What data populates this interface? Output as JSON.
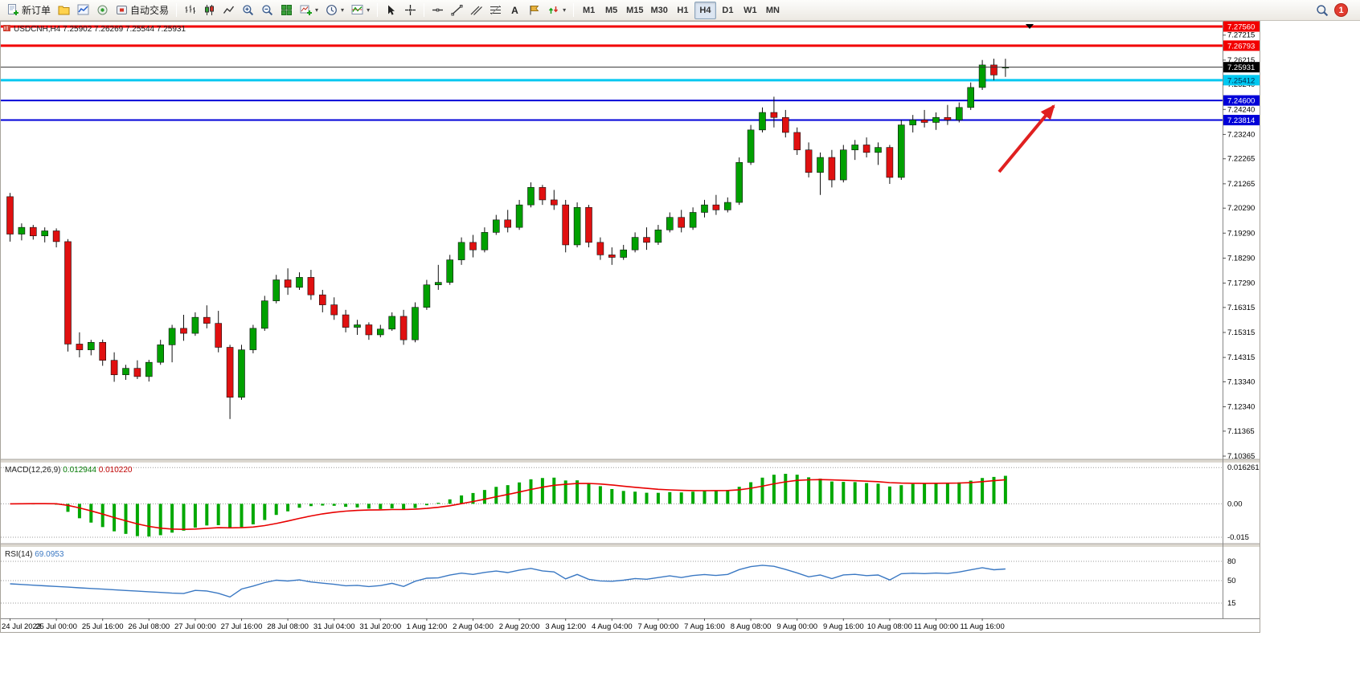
{
  "toolbar": {
    "new_order": "新订单",
    "autotrading": "自动交易",
    "timeframes": [
      "M1",
      "M5",
      "M15",
      "M30",
      "H1",
      "H4",
      "D1",
      "W1",
      "MN"
    ],
    "active_timeframe": "H4",
    "notification_count": "1"
  },
  "chart_data": {
    "type": "candlestick",
    "symbol": "USDCNH",
    "timeframe": "H4",
    "ohlc_label": "7.25902 7.26269 7.25544 7.25931",
    "last_bar": {
      "open": 7.25902,
      "high": 7.26269,
      "low": 7.25544,
      "close": 7.25931
    },
    "bid": 7.25931,
    "price_range": [
      7.10365,
      7.2756
    ],
    "price_axis_ticks": [
      7.27215,
      7.26215,
      7.2524,
      7.2424,
      7.2324,
      7.22265,
      7.21265,
      7.2029,
      7.1929,
      7.1829,
      7.1729,
      7.16315,
      7.15315,
      7.14315,
      7.1334,
      7.1234,
      7.11365,
      7.10365
    ],
    "hlines": [
      {
        "price": 7.2756,
        "color": "#F20000",
        "width": 3,
        "label": "7.27560",
        "text": "#ffffff"
      },
      {
        "price": 7.26793,
        "color": "#F20000",
        "width": 3,
        "label": "7.26793",
        "text": "#ffffff"
      },
      {
        "price": 7.25412,
        "color": "#00C8F0",
        "width": 3,
        "label": "7.25412",
        "text": "#00264d"
      },
      {
        "price": 7.246,
        "color": "#0000D8",
        "width": 2,
        "label": "7.24600",
        "text": "#ffffff"
      },
      {
        "price": 7.23814,
        "color": "#0000D8",
        "width": 2,
        "label": "7.23814",
        "text": "#ffffff"
      }
    ],
    "up_color": "#00A000",
    "down_color": "#E01010",
    "wick_color": "#111111",
    "time_labels": [
      "24 Jul 2023",
      "25 Jul 00:00",
      "25 Jul 16:00",
      "26 Jul 08:00",
      "27 Jul 00:00",
      "27 Jul 16:00",
      "28 Jul 08:00",
      "31 Jul 04:00",
      "31 Jul 20:00",
      "1 Aug 12:00",
      "2 Aug 04:00",
      "2 Aug 20:00",
      "3 Aug 12:00",
      "4 Aug 04:00",
      "7 Aug 00:00",
      "7 Aug 16:00",
      "8 Aug 08:00",
      "9 Aug 00:00",
      "9 Aug 16:00",
      "10 Aug 08:00",
      "11 Aug 00:00",
      "11 Aug 16:00"
    ],
    "label_every_n_candles": 4,
    "candles": [
      [
        7.2075,
        7.209,
        7.1895,
        7.1925
      ],
      [
        7.1925,
        7.1968,
        7.19,
        7.1952
      ],
      [
        7.1952,
        7.1962,
        7.1903,
        7.1918
      ],
      [
        7.1918,
        7.1952,
        7.1892,
        7.1938
      ],
      [
        7.1938,
        7.1948,
        7.1872,
        7.1895
      ],
      [
        7.1895,
        7.1905,
        7.1455,
        7.1485
      ],
      [
        7.1485,
        7.1532,
        7.1432,
        7.1462
      ],
      [
        7.1462,
        7.1502,
        7.144,
        7.1492
      ],
      [
        7.1492,
        7.1503,
        7.1398,
        7.142
      ],
      [
        7.142,
        7.1452,
        7.1334,
        7.1362
      ],
      [
        7.1362,
        7.1402,
        7.1342,
        7.1388
      ],
      [
        7.1388,
        7.142,
        7.1345,
        7.1355
      ],
      [
        7.1355,
        7.1422,
        7.1335,
        7.1412
      ],
      [
        7.1412,
        7.1502,
        7.1402,
        7.1482
      ],
      [
        7.1482,
        7.1562,
        7.1412,
        7.1548
      ],
      [
        7.1548,
        7.1602,
        7.1498,
        7.1528
      ],
      [
        7.1528,
        7.1612,
        7.1518,
        7.1592
      ],
      [
        7.1592,
        7.164,
        7.1548,
        7.1568
      ],
      [
        7.1568,
        7.1618,
        7.1452,
        7.1472
      ],
      [
        7.1472,
        7.1482,
        7.1185,
        7.1272
      ],
      [
        7.1272,
        7.1482,
        7.1262,
        7.1462
      ],
      [
        7.1462,
        7.1562,
        7.1448,
        7.1548
      ],
      [
        7.1548,
        7.1678,
        7.1538,
        7.1658
      ],
      [
        7.1658,
        7.1762,
        7.1648,
        7.1742
      ],
      [
        7.1742,
        7.1788,
        7.1682,
        7.1712
      ],
      [
        7.1712,
        7.1772,
        7.1702,
        7.1752
      ],
      [
        7.1752,
        7.1782,
        7.1662,
        7.1682
      ],
      [
        7.1682,
        7.1702,
        7.1612,
        7.1642
      ],
      [
        7.1642,
        7.1672,
        7.1582,
        7.1602
      ],
      [
        7.1602,
        7.1622,
        7.1532,
        7.1552
      ],
      [
        7.1552,
        7.1582,
        7.1522,
        7.1562
      ],
      [
        7.1562,
        7.1572,
        7.1502,
        7.1522
      ],
      [
        7.1522,
        7.1562,
        7.1512,
        7.1545
      ],
      [
        7.1545,
        7.1612,
        7.1538,
        7.1596
      ],
      [
        7.1596,
        7.1622,
        7.1482,
        7.1502
      ],
      [
        7.1502,
        7.1652,
        7.1492,
        7.1632
      ],
      [
        7.1632,
        7.1742,
        7.1622,
        7.1722
      ],
      [
        7.1722,
        7.1802,
        7.1702,
        7.1732
      ],
      [
        7.1732,
        7.1842,
        7.1722,
        7.1822
      ],
      [
        7.1822,
        7.1912,
        7.1802,
        7.1892
      ],
      [
        7.1892,
        7.1922,
        7.1832,
        7.1862
      ],
      [
        7.1862,
        7.1952,
        7.1852,
        7.1932
      ],
      [
        7.1932,
        7.2002,
        7.1922,
        7.1982
      ],
      [
        7.1982,
        7.2022,
        7.1932,
        7.1952
      ],
      [
        7.1952,
        7.2062,
        7.1942,
        7.2042
      ],
      [
        7.2042,
        7.2132,
        7.2032,
        7.2112
      ],
      [
        7.2112,
        7.2122,
        7.2042,
        7.2062
      ],
      [
        7.2062,
        7.2102,
        7.2022,
        7.2042
      ],
      [
        7.2042,
        7.2062,
        7.1852,
        7.1882
      ],
      [
        7.1882,
        7.2052,
        7.1872,
        7.2032
      ],
      [
        7.2032,
        7.2042,
        7.1872,
        7.1892
      ],
      [
        7.1892,
        7.1912,
        7.1822,
        7.1842
      ],
      [
        7.1842,
        7.1872,
        7.1802,
        7.1832
      ],
      [
        7.1832,
        7.1882,
        7.1822,
        7.1862
      ],
      [
        7.1862,
        7.1932,
        7.1852,
        7.1912
      ],
      [
        7.1912,
        7.1952,
        7.1862,
        7.1892
      ],
      [
        7.1892,
        7.1962,
        7.1882,
        7.1942
      ],
      [
        7.1942,
        7.2012,
        7.1932,
        7.1992
      ],
      [
        7.1992,
        7.2022,
        7.1932,
        7.1952
      ],
      [
        7.1952,
        7.2032,
        7.1942,
        7.2012
      ],
      [
        7.2012,
        7.2062,
        7.1992,
        7.2042
      ],
      [
        7.2042,
        7.2082,
        7.2002,
        7.2022
      ],
      [
        7.2022,
        7.2072,
        7.2012,
        7.2052
      ],
      [
        7.2052,
        7.2232,
        7.2042,
        7.2212
      ],
      [
        7.2212,
        7.2362,
        7.2202,
        7.2342
      ],
      [
        7.2342,
        7.2432,
        7.2332,
        7.2412
      ],
      [
        7.2412,
        7.2475,
        7.2352,
        7.2392
      ],
      [
        7.2392,
        7.2422,
        7.2312,
        7.2332
      ],
      [
        7.2332,
        7.2352,
        7.2242,
        7.2262
      ],
      [
        7.2262,
        7.2292,
        7.2152,
        7.2172
      ],
      [
        7.2172,
        7.2252,
        7.2082,
        7.2232
      ],
      [
        7.2232,
        7.2262,
        7.2112,
        7.2142
      ],
      [
        7.2142,
        7.2282,
        7.2132,
        7.2262
      ],
      [
        7.2262,
        7.2302,
        7.2222,
        7.2282
      ],
      [
        7.2282,
        7.2312,
        7.2232,
        7.2252
      ],
      [
        7.2252,
        7.2292,
        7.2202,
        7.2272
      ],
      [
        7.2272,
        7.2282,
        7.2126,
        7.2152
      ],
      [
        7.2152,
        7.2382,
        7.2142,
        7.2362
      ],
      [
        7.2362,
        7.2402,
        7.2332,
        7.2382
      ],
      [
        7.2382,
        7.2422,
        7.2352,
        7.2372
      ],
      [
        7.2372,
        7.2412,
        7.2342,
        7.2392
      ],
      [
        7.2392,
        7.2442,
        7.2362,
        7.2382
      ],
      [
        7.2382,
        7.2452,
        7.2372,
        7.2432
      ],
      [
        7.2432,
        7.2532,
        7.2422,
        7.2512
      ],
      [
        7.2512,
        7.2622,
        7.2502,
        7.2602
      ],
      [
        7.2602,
        7.2627,
        7.2541,
        7.2562
      ],
      [
        7.25902,
        7.26269,
        7.25544,
        7.25931
      ]
    ],
    "macd": {
      "label": "MACD(12,26,9)",
      "params": [
        12,
        26,
        9
      ],
      "main_value": "0.012944",
      "signal_value": "0.010220",
      "axis_ticks": [
        "0.016261",
        "0.00",
        "-0.015"
      ],
      "axis_tick_values": [
        0.016261,
        0,
        -0.015
      ],
      "range": [
        -0.0175,
        0.0185
      ],
      "histogram_color": "#00A800",
      "signal_color": "#E80000"
    },
    "rsi": {
      "label": "RSI(14)",
      "period": 14,
      "value": "69.0953",
      "levels": [
        80,
        50,
        15
      ],
      "color": "#3A78C3"
    },
    "arrow": {
      "color": "#E02020"
    }
  }
}
